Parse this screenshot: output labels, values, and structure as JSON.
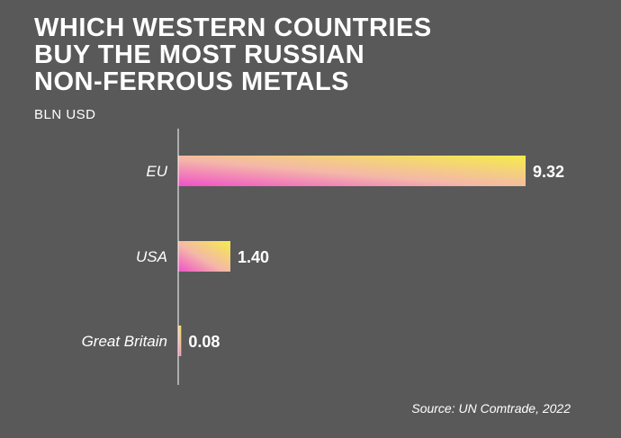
{
  "header": {
    "title_lines": [
      "WHICH WESTERN COUNTRIES",
      "BUY THE MOST RUSSIAN",
      "NON-FERROUS METALS"
    ],
    "unit": "BLN USD"
  },
  "footer": {
    "source": "Source: UN Comtrade, 2022"
  },
  "colors": {
    "background": "#595959",
    "bar_start": "#f050c8",
    "bar_mid": "#f4b8a8",
    "bar_end": "#f5ec4c",
    "axis": "#ffffff",
    "text": "#ffffff"
  },
  "chart_data": {
    "type": "bar",
    "orientation": "horizontal",
    "categories": [
      "EU",
      "USA",
      "Great Britain"
    ],
    "values": [
      9.32,
      1.4,
      0.08
    ],
    "value_labels": [
      "9.32",
      "1.40",
      "0.08"
    ],
    "xlim": [
      0,
      9.32
    ],
    "grid": false,
    "legend": "none"
  }
}
